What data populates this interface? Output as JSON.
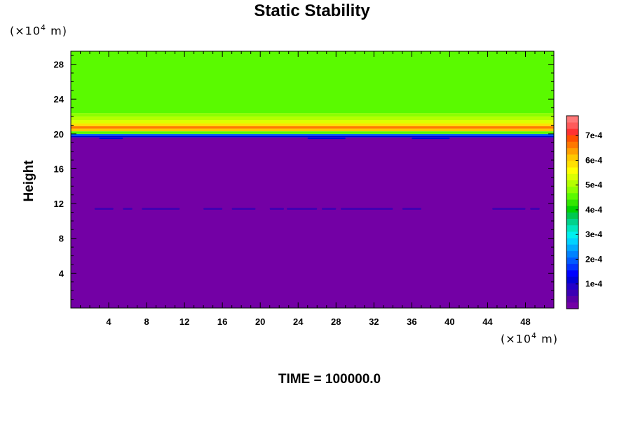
{
  "title": "Static Stability",
  "footer": "TIME = 100000.0",
  "y_axis_label": "Height",
  "axis_unit": {
    "prefix": "(×10",
    "exponent": "4",
    "suffix": " m)"
  },
  "chart_data": {
    "type": "heatmap",
    "title": "Static Stability",
    "ylabel": "Height",
    "xlim": [
      0,
      51
    ],
    "ylim": [
      0,
      29.5
    ],
    "x_ticks": [
      4,
      8,
      12,
      16,
      20,
      24,
      28,
      32,
      36,
      40,
      44,
      48
    ],
    "y_ticks": [
      4,
      8,
      12,
      16,
      20,
      24,
      28
    ],
    "x_tick_labels": [
      "4",
      "8",
      "12",
      "16",
      "20",
      "24",
      "28",
      "32",
      "36",
      "40",
      "44",
      "48"
    ],
    "y_tick_labels": [
      "4",
      "8",
      "12",
      "16",
      "20",
      "24",
      "28"
    ],
    "colorbar": {
      "range": [
        0,
        0.00078
      ],
      "ticks": [
        0.0001,
        0.0002,
        0.0003,
        0.0004,
        0.0005,
        0.0006,
        0.0007
      ],
      "tick_labels": [
        "1e-4",
        "2e-4",
        "3e-4",
        "4e-4",
        "5e-4",
        "6e-4",
        "7e-4"
      ],
      "colors": [
        "#7300a5",
        "#5a00a5",
        "#3c00b4",
        "#2300c8",
        "#0000d7",
        "#0000ff",
        "#0032ff",
        "#005aff",
        "#0082ff",
        "#00aaff",
        "#00d2ff",
        "#00f0f0",
        "#00e6be",
        "#00d28c",
        "#00c850",
        "#00d200",
        "#32e600",
        "#5afa00",
        "#8cff00",
        "#b4ff00",
        "#dcff00",
        "#ffff00",
        "#ffe100",
        "#ffc800",
        "#ffa000",
        "#ff7800",
        "#ff5000",
        "#ff3232",
        "#ff5a5a",
        "#ff7878"
      ]
    },
    "field": [
      {
        "from": 0,
        "to": 19.6,
        "value": 1e-05,
        "color": "#7300a5"
      },
      {
        "from": 19.6,
        "to": 19.8,
        "value": 5e-05,
        "color": "#0000d7"
      },
      {
        "from": 19.8,
        "to": 20.0,
        "value": 0.0001,
        "color": "#0064ff"
      },
      {
        "from": 20.0,
        "to": 20.3,
        "value": 0.00042,
        "color": "#5afa00"
      },
      {
        "from": 20.3,
        "to": 20.6,
        "value": 0.00058,
        "color": "#ffc800"
      },
      {
        "from": 20.6,
        "to": 20.9,
        "value": 0.00065,
        "color": "#ff7800"
      },
      {
        "from": 20.9,
        "to": 21.2,
        "value": 0.00058,
        "color": "#ffe100"
      },
      {
        "from": 21.2,
        "to": 21.6,
        "value": 0.00052,
        "color": "#dcff00"
      },
      {
        "from": 21.6,
        "to": 22.0,
        "value": 0.00047,
        "color": "#b4ff00"
      },
      {
        "from": 22.0,
        "to": 22.4,
        "value": 0.00044,
        "color": "#8cff00"
      },
      {
        "from": 22.4,
        "to": 29.5,
        "value": 0.00042,
        "color": "#5afa00"
      }
    ],
    "features": [
      {
        "type": "streaks",
        "height": 11.4,
        "value": 4e-05,
        "segments": [
          [
            2.5,
            4.5
          ],
          [
            5.5,
            6.5
          ],
          [
            7.5,
            11.5
          ],
          [
            14,
            16
          ],
          [
            17,
            19.5
          ],
          [
            21,
            22.5
          ],
          [
            22.8,
            26
          ],
          [
            26.5,
            28
          ],
          [
            28.5,
            34
          ],
          [
            35,
            37
          ],
          [
            44.5,
            48
          ],
          [
            48.5,
            49.5
          ]
        ]
      },
      {
        "type": "band",
        "height": 19.5,
        "value": 6e-05,
        "segments": [
          [
            3,
            5.5
          ],
          [
            25,
            29
          ],
          [
            36,
            40
          ]
        ]
      }
    ]
  },
  "colors": {
    "frame": "#000000",
    "background": "#ffffff"
  }
}
